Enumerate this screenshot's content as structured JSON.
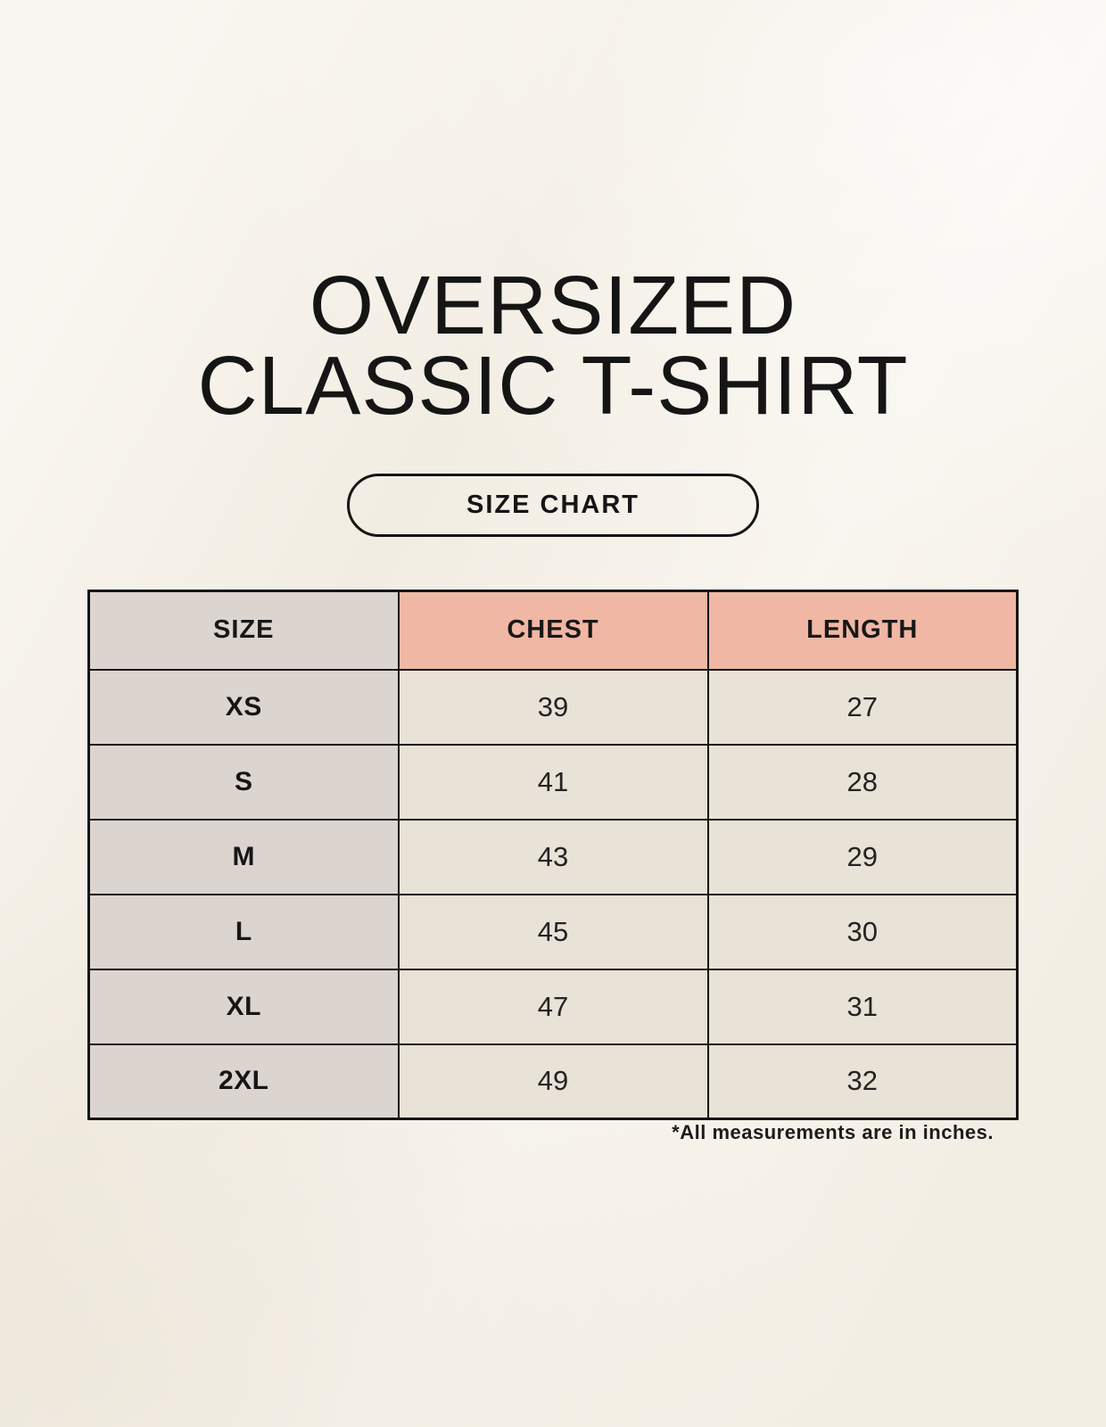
{
  "page": {
    "background_color": "#f6f2e9",
    "text_color": "#151515"
  },
  "title": {
    "line1": "OVERSIZED",
    "line2": "CLASSIC T-SHIRT"
  },
  "size_chart_button": {
    "label": "SIZE CHART"
  },
  "table": {
    "columns": [
      {
        "label": "SIZE",
        "header_bg": "#dcd4cf"
      },
      {
        "label": "CHEST",
        "header_bg": "#f0b7a4"
      },
      {
        "label": "LENGTH",
        "header_bg": "#f0b7a4"
      }
    ],
    "rows": [
      {
        "size": "XS",
        "chest": "39",
        "length": "27"
      },
      {
        "size": "S",
        "chest": "41",
        "length": "28"
      },
      {
        "size": "M",
        "chest": "43",
        "length": "29"
      },
      {
        "size": "L",
        "chest": "45",
        "length": "30"
      },
      {
        "size": "XL",
        "chest": "47",
        "length": "31"
      },
      {
        "size": "2XL",
        "chest": "49",
        "length": "32"
      }
    ],
    "colors": {
      "size_column_bg": "#dcd4cf",
      "data_cell_bg": "#e9e2d6",
      "header_pink_bg": "#f0b7a4",
      "border": "#151515"
    }
  },
  "footnote": "*All measurements are in inches."
}
